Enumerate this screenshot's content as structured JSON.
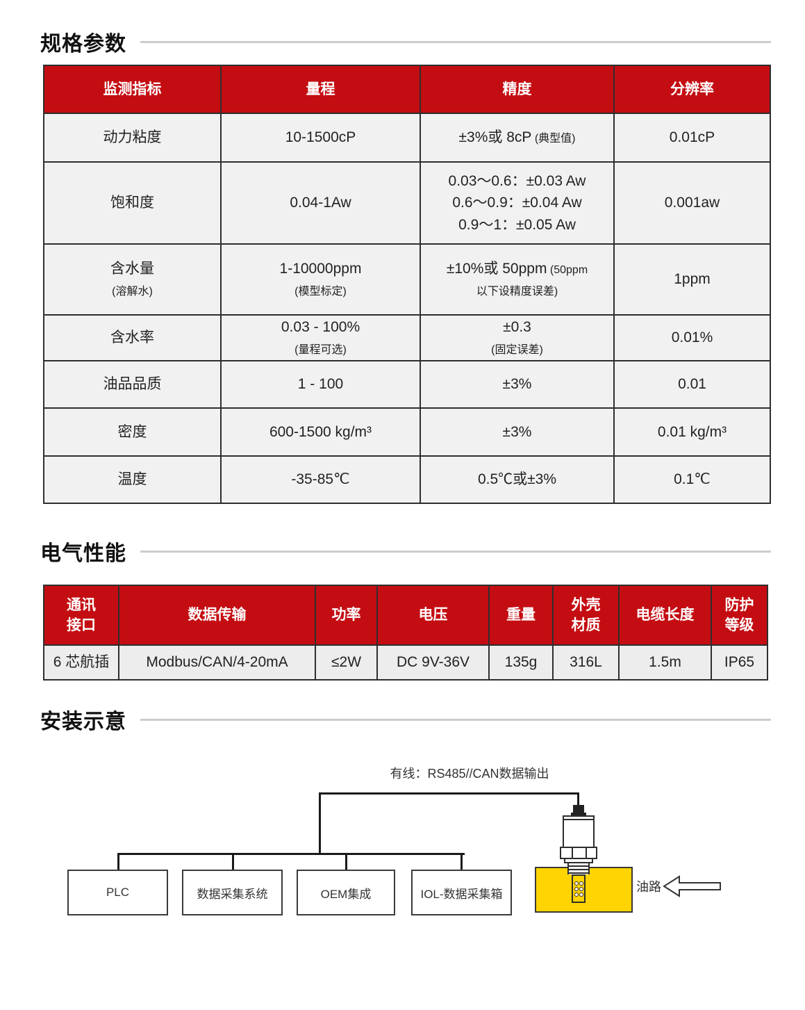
{
  "colors": {
    "header_red": "#C40D12",
    "cell_gray": "#F1F1F1",
    "divider_gray": "#CCCCCC",
    "pipe_yellow": "#FFD401"
  },
  "sections": {
    "spec_title": "规格参数",
    "electrical_title": "电气性能",
    "install_title": "安装示意"
  },
  "spec_table": {
    "headers": [
      "监测指标",
      "量程",
      "精度",
      "分辨率"
    ],
    "rows": [
      {
        "cells": [
          [
            {
              "t": "动力粘度"
            }
          ],
          [
            {
              "t": "10-1500cP"
            }
          ],
          [
            {
              "t": "±3%或 8cP",
              "s": "(典型值)"
            }
          ],
          [
            {
              "t": "0.01cP"
            }
          ]
        ]
      },
      {
        "cells": [
          [
            {
              "t": "饱和度"
            }
          ],
          [
            {
              "t": "0.04-1Aw"
            }
          ],
          [
            {
              "t": "0.03～0.6：±0.03 Aw"
            },
            {
              "t": "0.6～0.9：±0.04 Aw"
            },
            {
              "t": "0.9～1：±0.05 Aw"
            }
          ],
          [
            {
              "t": "0.001aw"
            }
          ]
        ]
      },
      {
        "cells": [
          [
            {
              "t": "含水量"
            },
            {
              "s": "(溶解水)"
            }
          ],
          [
            {
              "t": "1-10000ppm"
            },
            {
              "s": "(模型标定)"
            }
          ],
          [
            {
              "t": "±10%或 50ppm",
              "s": "(50ppm"
            },
            {
              "s": "以下设精度误差)"
            }
          ],
          [
            {
              "t": "1ppm"
            }
          ]
        ]
      },
      {
        "cells": [
          [
            {
              "t": "含水率"
            }
          ],
          [
            {
              "t": "0.03 - 100%"
            },
            {
              "s": "(量程可选)"
            }
          ],
          [
            {
              "t": "±0.3"
            },
            {
              "s": "(固定误差)"
            }
          ],
          [
            {
              "t": "0.01%"
            }
          ]
        ]
      },
      {
        "cells": [
          [
            {
              "t": "油品品质"
            }
          ],
          [
            {
              "t": "1 - 100"
            }
          ],
          [
            {
              "t": "±3%"
            }
          ],
          [
            {
              "t": "0.01"
            }
          ]
        ]
      },
      {
        "cells": [
          [
            {
              "t": "密度"
            }
          ],
          [
            {
              "t": "600-1500 kg/m³"
            }
          ],
          [
            {
              "t": "±3%"
            }
          ],
          [
            {
              "t": "0.01 kg/m³"
            }
          ]
        ]
      },
      {
        "cells": [
          [
            {
              "t": "温度"
            }
          ],
          [
            {
              "t": "-35-85℃"
            }
          ],
          [
            {
              "t": "0.5℃或±3%"
            }
          ],
          [
            {
              "t": "0.1℃"
            }
          ]
        ]
      }
    ]
  },
  "electrical_table": {
    "headers": [
      "通讯\n接口",
      "数据传输",
      "功率",
      "电压",
      "重量",
      "外壳\n材质",
      "电缆长度",
      "防护\n等级"
    ],
    "values": [
      "6 芯航插",
      "Modbus/CAN/4-20mA",
      "≤2W",
      "DC 9V-36V",
      "135g",
      "316L",
      "1.5m",
      "IP65"
    ]
  },
  "diagram": {
    "wired_label": "有线：RS485//CAN数据输出",
    "nodes": [
      "PLC",
      "数据采集系统",
      "OEM集成",
      "IOL-数据采集箱"
    ],
    "oil_path_label": "油路"
  }
}
